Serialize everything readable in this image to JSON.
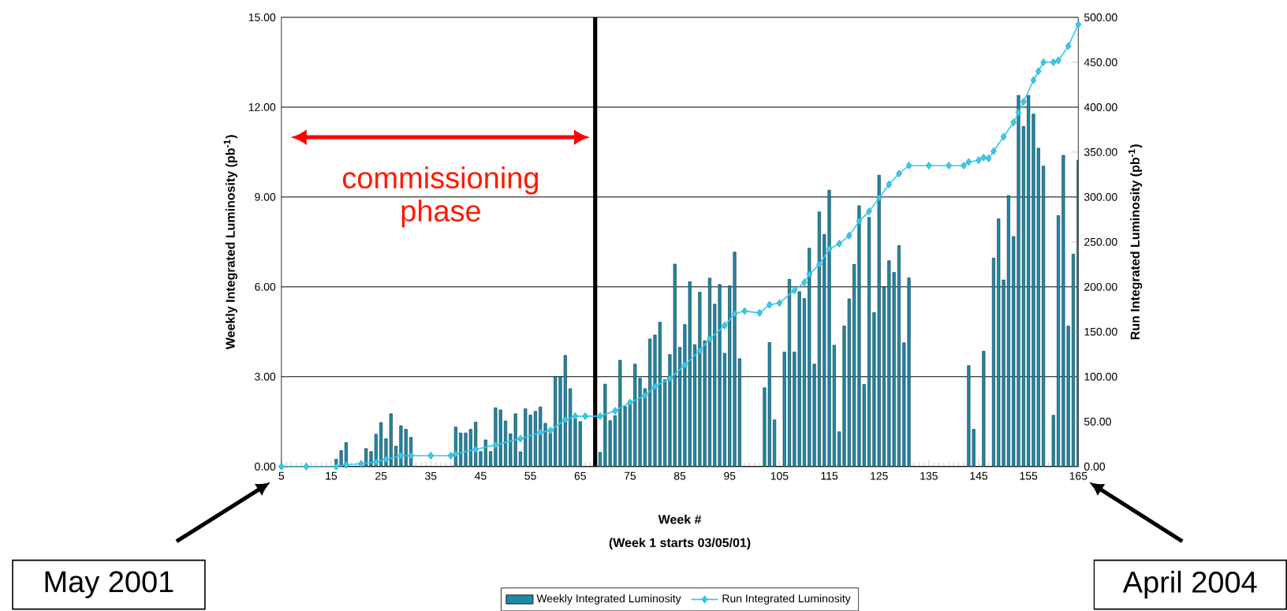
{
  "chart_data": {
    "type": "bar",
    "xlabel": "Week  #",
    "ylabel": "Weekly Integrated Luminosity (pb$^{-1}$)",
    "y2label": "Run Integrated Luminosity (pb$^{-1}$)",
    "series": [
      {
        "name": "Weekly Integrated Luminosity",
        "color": "#1f8aa6",
        "x": [
          16,
          17,
          18,
          22,
          23,
          24,
          25,
          26,
          27,
          28,
          29,
          30,
          31,
          40,
          41,
          42,
          43,
          44,
          45,
          46,
          47,
          48,
          49,
          50,
          51,
          52,
          53,
          54,
          55,
          56,
          57,
          58,
          59,
          60,
          61,
          62,
          63,
          64,
          65,
          69,
          70,
          71,
          72,
          73,
          74,
          75,
          76,
          77,
          78,
          79,
          80,
          81,
          82,
          83,
          84,
          85,
          86,
          87,
          88,
          89,
          90,
          91,
          92,
          93,
          94,
          95,
          96,
          97,
          102,
          103,
          104,
          106,
          107,
          108,
          109,
          110,
          111,
          112,
          113,
          114,
          115,
          116,
          117,
          118,
          119,
          120,
          121,
          122,
          123,
          124,
          125,
          126,
          127,
          128,
          129,
          130,
          131,
          143,
          144,
          146,
          148,
          149,
          150,
          151,
          152,
          153,
          154,
          155,
          156,
          157,
          158,
          160,
          161,
          162,
          163,
          164,
          165
        ],
        "values": [
          0.24,
          0.53,
          0.8,
          0.6,
          0.5,
          1.08,
          1.47,
          0.93,
          1.76,
          0.68,
          1.36,
          1.24,
          0.97,
          1.32,
          1.12,
          1.12,
          1.24,
          1.48,
          0.5,
          0.89,
          0.5,
          1.96,
          1.89,
          1.52,
          1.09,
          1.76,
          0.49,
          1.93,
          1.72,
          1.84,
          1.99,
          1.44,
          1.1,
          3.0,
          3.0,
          3.71,
          2.6,
          1.6,
          1.5,
          0.47,
          2.75,
          1.53,
          1.7,
          3.55,
          2.0,
          2.2,
          3.42,
          2.95,
          2.6,
          4.26,
          4.39,
          4.82,
          2.9,
          3.74,
          6.76,
          3.98,
          4.74,
          6.17,
          4.07,
          5.82,
          4.2,
          6.29,
          5.42,
          6.08,
          3.78,
          6.04,
          7.16,
          3.6,
          2.63,
          4.14,
          1.56,
          3.82,
          6.25,
          3.82,
          5.84,
          5.61,
          7.29,
          3.42,
          8.5,
          7.75,
          9.23,
          4.05,
          1.16,
          4.69,
          5.6,
          6.75,
          8.71,
          2.74,
          8.32,
          5.14,
          9.73,
          6.0,
          6.87,
          6.48,
          7.38,
          4.13,
          6.3,
          3.37,
          1.24,
          3.85,
          6.96,
          8.27,
          6.23,
          9.05,
          7.68,
          12.4,
          11.36,
          12.4,
          11.77,
          10.63,
          10.03,
          1.71,
          8.38,
          10.39,
          4.69,
          7.09,
          10.23
        ]
      },
      {
        "name": "Run Integrated Luminosity",
        "type": "line",
        "axis": "y2",
        "marker": "diamond",
        "color": "#33ccee",
        "x": [
          5,
          10,
          16,
          18,
          21,
          24,
          26,
          29,
          31,
          35,
          39,
          40,
          44,
          48,
          53,
          57,
          59,
          62,
          64,
          66,
          69,
          72,
          75,
          78,
          80,
          83,
          86,
          89,
          91,
          94,
          96,
          98,
          101,
          103,
          105,
          108,
          110,
          111,
          113,
          115,
          117,
          119,
          121,
          123,
          125,
          127,
          129,
          131,
          135,
          139,
          142,
          143,
          145,
          146,
          147,
          148,
          150,
          152,
          153,
          154,
          156,
          157,
          158,
          160,
          161,
          163,
          165
        ],
        "values": [
          0,
          0,
          0,
          2,
          3,
          5,
          8,
          12,
          12,
          12,
          12,
          14,
          19,
          24,
          31,
          38,
          40,
          52,
          56,
          56,
          56,
          62,
          71,
          79,
          89,
          98,
          113,
          129,
          142,
          157,
          170,
          173,
          171,
          180,
          182,
          196,
          205,
          214,
          225,
          242,
          248,
          257,
          273,
          284,
          299,
          314,
          326,
          335,
          335,
          335,
          335,
          339,
          341,
          344,
          343,
          351,
          367,
          383,
          394,
          406,
          430,
          440,
          450,
          450,
          452,
          468,
          492
        ]
      }
    ],
    "xlim": [
      5,
      165
    ],
    "xticks": [
      5,
      15,
      25,
      35,
      45,
      55,
      65,
      75,
      85,
      95,
      105,
      115,
      125,
      135,
      145,
      155,
      165
    ],
    "ylim": [
      0,
      15
    ],
    "yticks": [
      {
        "value": 0,
        "label": "0.00"
      },
      {
        "value": 3,
        "label": "3.00"
      },
      {
        "value": 6,
        "label": "6.00"
      },
      {
        "value": 9,
        "label": "9.00"
      },
      {
        "value": 12,
        "label": "12.00"
      },
      {
        "value": 15,
        "label": "15.00"
      }
    ],
    "y2lim": [
      0,
      500
    ],
    "y2ticks": [
      {
        "value": 0,
        "label": "0.00"
      },
      {
        "value": 50,
        "label": "50.00"
      },
      {
        "value": 100,
        "label": "100.00"
      },
      {
        "value": 150,
        "label": "150.00"
      },
      {
        "value": 200,
        "label": "200.00"
      },
      {
        "value": 250,
        "label": "250.00"
      },
      {
        "value": 300,
        "label": "300.00"
      },
      {
        "value": 350,
        "label": "350.00"
      },
      {
        "value": 400,
        "label": "400.00"
      },
      {
        "value": 450,
        "label": "450.00"
      },
      {
        "value": 500,
        "label": "500.00"
      }
    ],
    "grid": "y",
    "legend": "bottom",
    "ref_lines": [
      {
        "axis": "x",
        "value": 68,
        "color": "#000000"
      }
    ],
    "annotations": [
      "commissioning phase",
      "(Week 1 starts 03/05/01)",
      "May 2001",
      "April 2004"
    ]
  }
}
